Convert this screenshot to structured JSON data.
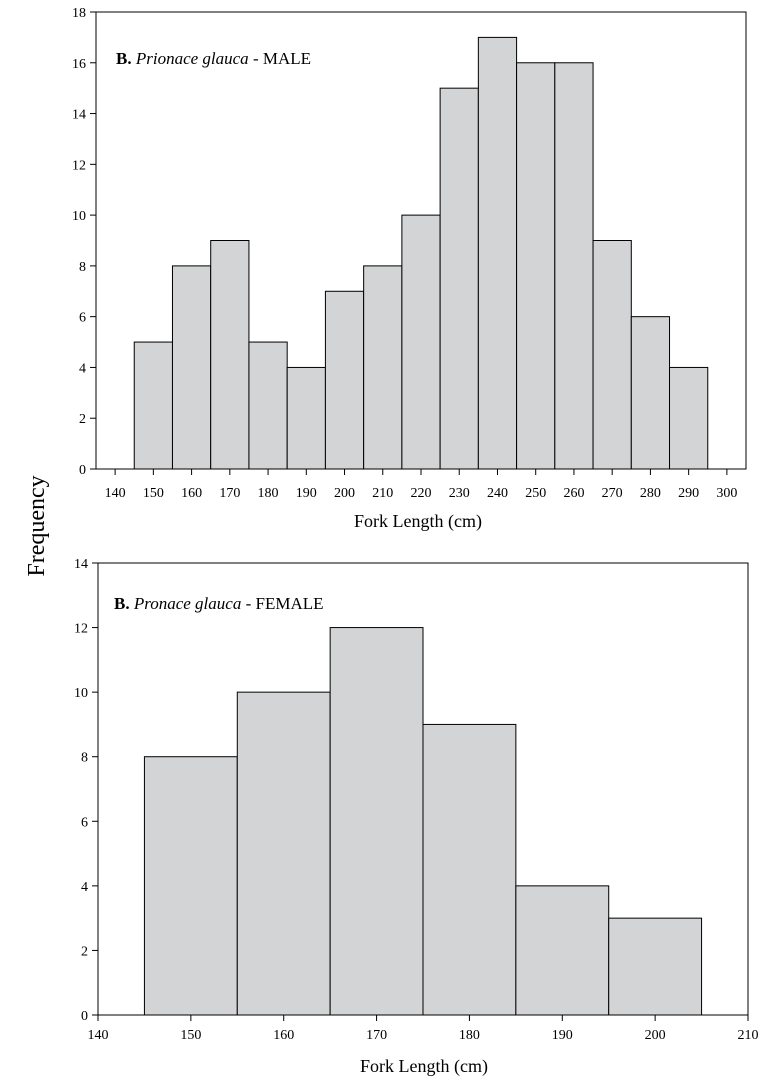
{
  "figure": {
    "ylabel": "Frequency"
  },
  "chart_data": [
    {
      "type": "bar",
      "panel": {
        "letter": "B.",
        "species": "Prionace glauca",
        "sex": "MALE"
      },
      "bin_width": 10,
      "categories": [
        150,
        160,
        170,
        180,
        190,
        200,
        210,
        220,
        230,
        240,
        250,
        260,
        270,
        280,
        290
      ],
      "values": [
        5,
        8,
        9,
        5,
        4,
        7,
        8,
        10,
        15,
        17,
        16,
        16,
        9,
        6,
        4
      ],
      "xticks": [
        140,
        150,
        160,
        170,
        180,
        190,
        200,
        210,
        220,
        230,
        240,
        250,
        260,
        270,
        280,
        290,
        300
      ],
      "yticks": [
        0,
        2,
        4,
        6,
        8,
        10,
        12,
        14,
        16,
        18
      ],
      "xlim": [
        135,
        305
      ],
      "ylim": [
        0,
        18
      ],
      "xlabel": "Fork Length (cm)",
      "bar_color": "#d3d4d6"
    },
    {
      "type": "bar",
      "panel": {
        "letter": "B.",
        "species": "Pronace glauca",
        "sex": "FEMALE"
      },
      "bin_width": 10,
      "categories": [
        150,
        160,
        170,
        180,
        190,
        200
      ],
      "values": [
        8,
        10,
        12,
        9,
        4,
        3
      ],
      "xticks": [
        140,
        150,
        160,
        170,
        180,
        190,
        200,
        210
      ],
      "yticks": [
        0,
        2,
        4,
        6,
        8,
        10,
        12,
        14
      ],
      "xlim": [
        140,
        210
      ],
      "ylim": [
        0,
        14
      ],
      "xlabel": "Fork Length (cm)",
      "bar_color": "#d3d4d6"
    }
  ]
}
